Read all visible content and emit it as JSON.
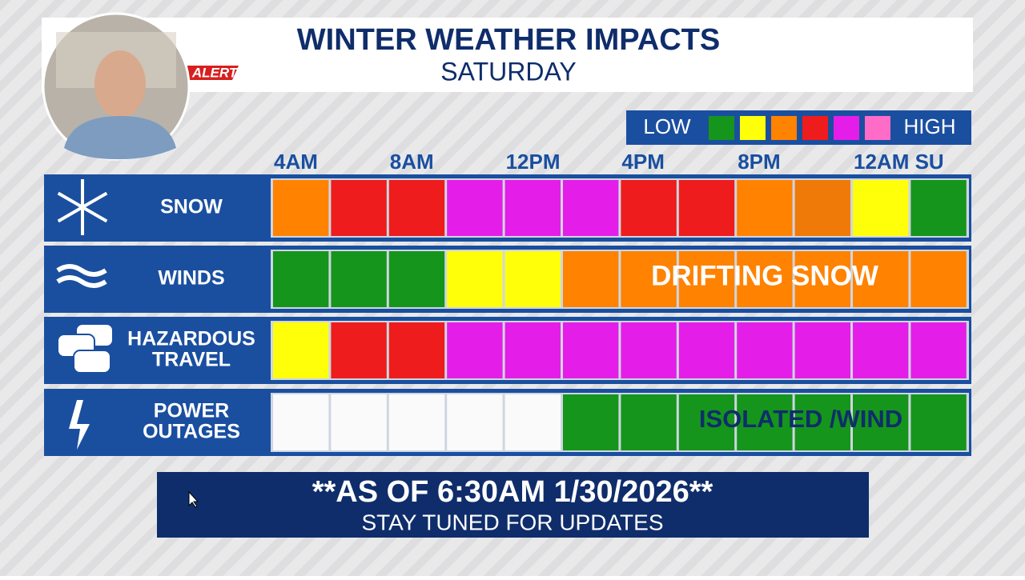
{
  "header": {
    "title": "WINTER WEATHER IMPACTS",
    "subtitle": "SATURDAY",
    "badge": "ALERT"
  },
  "legend": {
    "low": "LOW",
    "high": "HIGH",
    "colors": [
      "#15951b",
      "#ffff0a",
      "#ff8200",
      "#ee1c1c",
      "#e41ee8",
      "#ff6cc8"
    ]
  },
  "times": [
    "4AM",
    null,
    "8AM",
    null,
    "12PM",
    null,
    "4PM",
    null,
    "8PM",
    null,
    "12AM SU",
    null
  ],
  "rows": [
    {
      "label": [
        "SNOW"
      ],
      "cells": [
        "#ff8200",
        "#ee1c1c",
        "#ee1c1c",
        "#e41ee8",
        "#e41ee8",
        "#e41ee8",
        "#ee1c1c",
        "#ee1c1c",
        "#ff8200",
        "#f07a08",
        "#ffff0a",
        "#15951b"
      ]
    },
    {
      "label": [
        "WINDS"
      ],
      "cells": [
        "#15951b",
        "#15951b",
        "#15951b",
        "#ffff0a",
        "#ffff0a",
        "#ff8200",
        "#ff8200",
        "#ff8200",
        "#ff8200",
        "#ff8200",
        "#ff8200",
        "#ff8200"
      ],
      "note": "DRIFTING SNOW"
    },
    {
      "label": [
        "HAZARDOUS",
        "TRAVEL"
      ],
      "cells": [
        "#ffff0a",
        "#ee1c1c",
        "#ee1c1c",
        "#e41ee8",
        "#e41ee8",
        "#e41ee8",
        "#e41ee8",
        "#e41ee8",
        "#e41ee8",
        "#e41ee8",
        "#e41ee8",
        "#e41ee8"
      ]
    },
    {
      "label": [
        "POWER",
        "OUTAGES"
      ],
      "cells": [
        "#fafafa",
        "#fafafa",
        "#fafafa",
        "#fafafa",
        "#fafafa",
        "#15951b",
        "#15951b",
        "#15951b",
        "#15951b",
        "#15951b",
        "#15951b",
        "#15951b"
      ],
      "note": "ISOLATED /WIND"
    }
  ],
  "footer": {
    "headline": "**AS OF 6:30AM 1/30/2026**",
    "subline": "STAY TUNED FOR UPDATES"
  }
}
